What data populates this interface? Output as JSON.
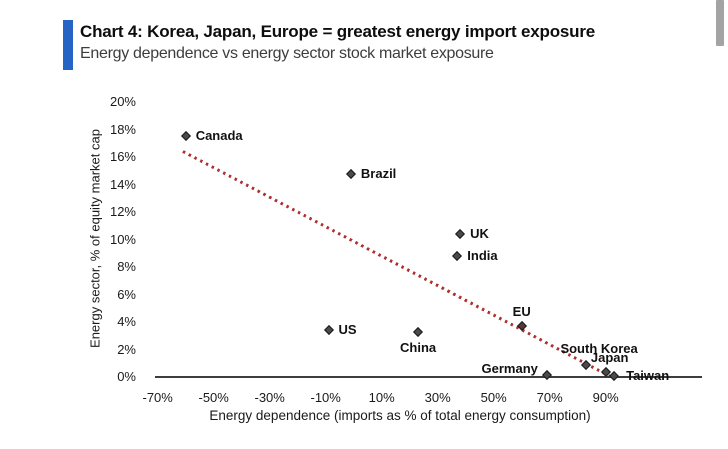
{
  "header": {
    "title": "Chart 4: Korea, Japan, Europe = greatest energy import exposure",
    "subtitle": "Energy dependence vs energy sector stock market exposure",
    "accent_color": "#2563c4"
  },
  "scrollbar": {
    "visible": true,
    "color": "#a3a3a3"
  },
  "chart_data": {
    "type": "scatter",
    "title": "Chart 4: Korea, Japan, Europe = greatest energy import exposure",
    "subtitle": "Energy dependence vs energy sector stock market exposure",
    "xlabel": "Energy dependence (imports as % of total energy consumption)",
    "ylabel": "Energy sector, % of equity market cap",
    "xlim": [
      -80,
      110
    ],
    "ylim": [
      0,
      20
    ],
    "x_ticks": [
      "-70%",
      "-50%",
      "-30%",
      "-10%",
      "10%",
      "30%",
      "50%",
      "70%",
      "90%"
    ],
    "y_ticks": [
      "0%",
      "2%",
      "4%",
      "6%",
      "8%",
      "10%",
      "12%",
      "14%",
      "16%",
      "18%",
      "20%"
    ],
    "grid": false,
    "legend": false,
    "marker": {
      "shape": "diamond",
      "fill": "#4a4a4a",
      "outline": "#191919"
    },
    "points": [
      {
        "name": "Canada",
        "x": -60,
        "y": 17.5,
        "label_pos": "right"
      },
      {
        "name": "Brazil",
        "x": -1,
        "y": 14.8,
        "label_pos": "right"
      },
      {
        "name": "UK",
        "x": 38,
        "y": 10.4,
        "label_pos": "right"
      },
      {
        "name": "India",
        "x": 37,
        "y": 8.8,
        "label_pos": "right"
      },
      {
        "name": "US",
        "x": -9,
        "y": 3.4,
        "label_pos": "right"
      },
      {
        "name": "China",
        "x": 23,
        "y": 3.3,
        "label_pos": "below"
      },
      {
        "name": "EU",
        "x": 60,
        "y": 3.7,
        "label_pos": "above",
        "color": "#5a3838"
      },
      {
        "name": "Germany",
        "x": 69,
        "y": 0.15,
        "label_pos": "left",
        "dy": -6
      },
      {
        "name": "South Korea",
        "x": 83,
        "y": 0.9,
        "label_pos": "above",
        "dx": 13,
        "dy": -2
      },
      {
        "name": "Japan",
        "x": 90,
        "y": 0.4,
        "label_pos": "above",
        "dx": 4
      },
      {
        "name": "Taiwan",
        "x": 93,
        "y": 0.05,
        "label_pos": "right",
        "dx": 2
      }
    ],
    "trendline": {
      "style": "dotted",
      "color": "#b03030",
      "x_start": -61,
      "y_start": 16.4,
      "x_end": 92,
      "y_end": 0
    }
  }
}
